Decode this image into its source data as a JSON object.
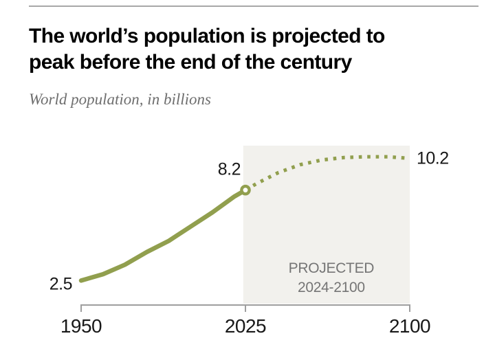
{
  "header": {
    "title_lines": [
      "The world’s population is projected to",
      "peak before the end of the century"
    ],
    "subtitle": "World population, in billions"
  },
  "chart_data": {
    "type": "line",
    "title": "The world’s population is projected to peak before the end of the century",
    "subtitle": "World population, in billions",
    "unit": "billions of people",
    "x_axis": {
      "range": [
        1950,
        2100
      ],
      "ticks": [
        {
          "year": 1950,
          "label": "1950"
        },
        {
          "year": 2025,
          "label": "2025"
        },
        {
          "year": 2100,
          "label": "2100"
        }
      ]
    },
    "y_axis": {
      "visible": false,
      "range_at_plot": [
        1,
        11
      ],
      "gridlines": false
    },
    "series": [
      {
        "name": "Historical",
        "style": "solid",
        "points": [
          [
            1950,
            2.5
          ],
          [
            1960,
            2.9
          ],
          [
            1970,
            3.5
          ],
          [
            1980,
            4.3
          ],
          [
            1990,
            5.0
          ],
          [
            2000,
            5.9
          ],
          [
            2010,
            6.8
          ],
          [
            2020,
            7.8
          ],
          [
            2025,
            8.2
          ]
        ]
      },
      {
        "name": "Projected",
        "style": "dashed",
        "points": [
          [
            2025,
            8.2
          ],
          [
            2030,
            8.6
          ],
          [
            2040,
            9.3
          ],
          [
            2050,
            9.8
          ],
          [
            2060,
            10.1
          ],
          [
            2070,
            10.25
          ],
          [
            2080,
            10.3
          ],
          [
            2090,
            10.3
          ],
          [
            2100,
            10.2
          ]
        ]
      }
    ],
    "annotations": {
      "value_labels": [
        {
          "id": "start",
          "text": "2.5",
          "year": 1950,
          "value": 2.5
        },
        {
          "id": "current",
          "text": "8.2",
          "year": 2025,
          "value": 8.2
        },
        {
          "id": "end",
          "text": "10.2",
          "year": 2100,
          "value": 10.2
        }
      ],
      "projected_region": {
        "from_year": 2024,
        "to_year": 2100,
        "label_lines": [
          "PROJECTED",
          "2024-2100"
        ]
      }
    },
    "legend": "none",
    "colors": {
      "line": "#919f4e",
      "marker_fill": "#ffffff",
      "region": "#f2f1ed",
      "axis": "#9e9e9e",
      "muted_text": "#757575",
      "text": "#181818"
    }
  }
}
